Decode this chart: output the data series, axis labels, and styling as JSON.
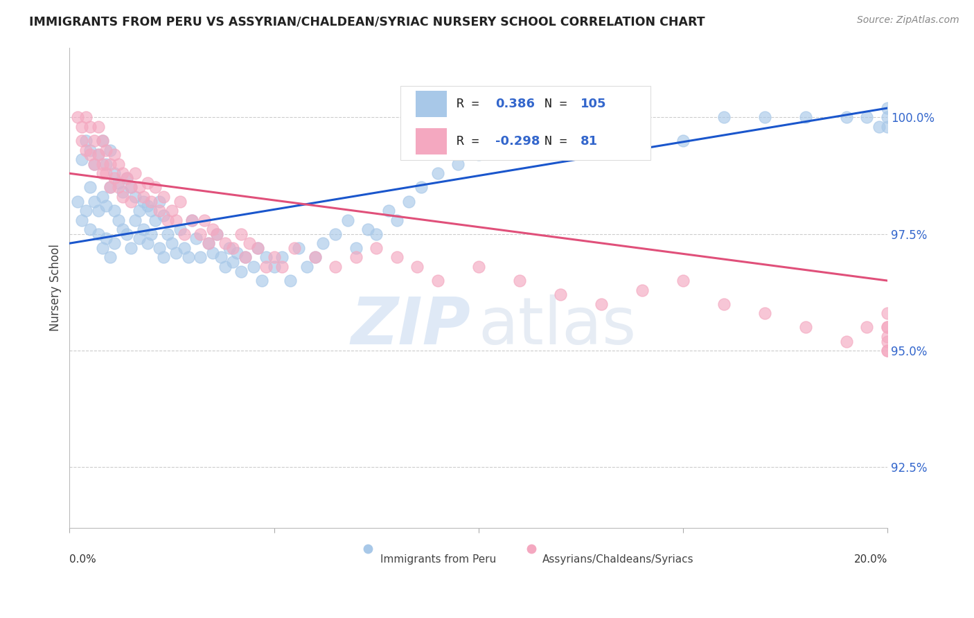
{
  "title": "IMMIGRANTS FROM PERU VS ASSYRIAN/CHALDEAN/SYRIAC NURSERY SCHOOL CORRELATION CHART",
  "source_text": "Source: ZipAtlas.com",
  "ylabel": "Nursery School",
  "x_label_bottom_left": "0.0%",
  "x_label_bottom_right": "20.0%",
  "y_ticks": [
    92.5,
    95.0,
    97.5,
    100.0
  ],
  "y_tick_labels": [
    "92.5%",
    "95.0%",
    "97.5%",
    "100.0%"
  ],
  "xlim": [
    0.0,
    20.0
  ],
  "ylim": [
    91.2,
    101.5
  ],
  "legend_r_blue": "0.386",
  "legend_n_blue": "105",
  "legend_r_pink": "-0.298",
  "legend_n_pink": "81",
  "blue_color": "#a8c8e8",
  "pink_color": "#f4a8c0",
  "blue_line_color": "#1a56cc",
  "pink_line_color": "#e0507a",
  "blue_scatter_x": [
    0.2,
    0.3,
    0.3,
    0.4,
    0.4,
    0.5,
    0.5,
    0.5,
    0.6,
    0.6,
    0.7,
    0.7,
    0.7,
    0.8,
    0.8,
    0.8,
    0.9,
    0.9,
    0.9,
    1.0,
    1.0,
    1.0,
    1.1,
    1.1,
    1.1,
    1.2,
    1.2,
    1.3,
    1.3,
    1.4,
    1.4,
    1.5,
    1.5,
    1.6,
    1.6,
    1.7,
    1.7,
    1.8,
    1.8,
    1.9,
    1.9,
    2.0,
    2.0,
    2.1,
    2.2,
    2.2,
    2.3,
    2.3,
    2.4,
    2.5,
    2.6,
    2.7,
    2.8,
    2.9,
    3.0,
    3.1,
    3.2,
    3.4,
    3.5,
    3.6,
    3.7,
    3.8,
    3.9,
    4.0,
    4.1,
    4.2,
    4.3,
    4.5,
    4.6,
    4.7,
    4.8,
    5.0,
    5.2,
    5.4,
    5.6,
    5.8,
    6.0,
    6.2,
    6.5,
    6.8,
    7.0,
    7.3,
    7.5,
    7.8,
    8.0,
    8.3,
    8.6,
    9.0,
    9.5,
    10.0,
    10.5,
    11.0,
    12.0,
    13.0,
    14.0,
    15.0,
    16.0,
    17.0,
    18.0,
    19.0,
    20.0,
    20.0,
    20.0,
    19.5,
    19.8
  ],
  "blue_scatter_y": [
    98.2,
    99.1,
    97.8,
    99.5,
    98.0,
    99.3,
    98.5,
    97.6,
    99.0,
    98.2,
    99.2,
    98.0,
    97.5,
    99.5,
    98.3,
    97.2,
    99.0,
    98.1,
    97.4,
    99.3,
    98.5,
    97.0,
    98.8,
    98.0,
    97.3,
    98.6,
    97.8,
    98.4,
    97.6,
    98.7,
    97.5,
    98.5,
    97.2,
    98.3,
    97.8,
    98.0,
    97.4,
    98.2,
    97.6,
    98.1,
    97.3,
    98.0,
    97.5,
    97.8,
    98.2,
    97.2,
    97.9,
    97.0,
    97.5,
    97.3,
    97.1,
    97.6,
    97.2,
    97.0,
    97.8,
    97.4,
    97.0,
    97.3,
    97.1,
    97.5,
    97.0,
    96.8,
    97.2,
    96.9,
    97.1,
    96.7,
    97.0,
    96.8,
    97.2,
    96.5,
    97.0,
    96.8,
    97.0,
    96.5,
    97.2,
    96.8,
    97.0,
    97.3,
    97.5,
    97.8,
    97.2,
    97.6,
    97.5,
    98.0,
    97.8,
    98.2,
    98.5,
    98.8,
    99.0,
    99.2,
    99.5,
    99.8,
    99.5,
    100.0,
    99.8,
    99.5,
    100.0,
    100.0,
    100.0,
    100.0,
    100.0,
    99.8,
    100.2,
    100.0,
    99.8
  ],
  "pink_scatter_x": [
    0.2,
    0.3,
    0.3,
    0.4,
    0.4,
    0.5,
    0.5,
    0.6,
    0.6,
    0.7,
    0.7,
    0.8,
    0.8,
    0.8,
    0.9,
    0.9,
    1.0,
    1.0,
    1.1,
    1.1,
    1.2,
    1.2,
    1.3,
    1.3,
    1.4,
    1.5,
    1.5,
    1.6,
    1.7,
    1.8,
    1.9,
    2.0,
    2.1,
    2.2,
    2.3,
    2.4,
    2.5,
    2.6,
    2.7,
    2.8,
    3.0,
    3.2,
    3.3,
    3.4,
    3.5,
    3.6,
    3.8,
    4.0,
    4.2,
    4.3,
    4.4,
    4.6,
    4.8,
    5.0,
    5.2,
    5.5,
    6.0,
    6.5,
    7.0,
    7.5,
    8.0,
    8.5,
    9.0,
    10.0,
    11.0,
    12.0,
    13.0,
    14.0,
    15.0,
    16.0,
    17.0,
    18.0,
    19.0,
    19.5,
    20.0,
    20.0,
    20.0,
    20.0,
    20.0,
    20.0,
    20.0
  ],
  "pink_scatter_y": [
    100.0,
    99.8,
    99.5,
    100.0,
    99.3,
    99.8,
    99.2,
    99.5,
    99.0,
    99.8,
    99.2,
    99.5,
    99.0,
    98.8,
    99.3,
    98.8,
    99.0,
    98.5,
    99.2,
    98.7,
    99.0,
    98.5,
    98.8,
    98.3,
    98.7,
    98.5,
    98.2,
    98.8,
    98.5,
    98.3,
    98.6,
    98.2,
    98.5,
    98.0,
    98.3,
    97.8,
    98.0,
    97.8,
    98.2,
    97.5,
    97.8,
    97.5,
    97.8,
    97.3,
    97.6,
    97.5,
    97.3,
    97.2,
    97.5,
    97.0,
    97.3,
    97.2,
    96.8,
    97.0,
    96.8,
    97.2,
    97.0,
    96.8,
    97.0,
    97.2,
    97.0,
    96.8,
    96.5,
    96.8,
    96.5,
    96.2,
    96.0,
    96.3,
    96.5,
    96.0,
    95.8,
    95.5,
    95.2,
    95.5,
    95.3,
    95.0,
    95.5,
    95.2,
    95.8,
    95.5,
    95.0
  ]
}
